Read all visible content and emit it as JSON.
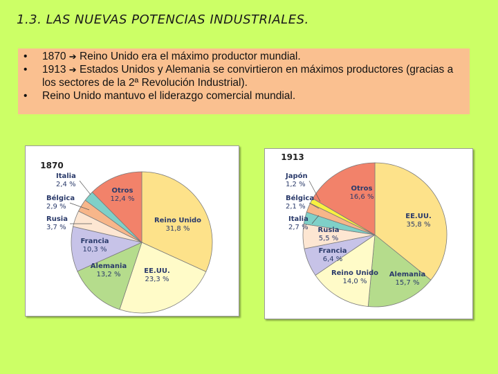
{
  "title": "1.3. LAS NUEVAS POTENCIAS INDUSTRIALES.",
  "bullets": [
    {
      "marker": "•",
      "year": "1870",
      "text": "Reino Unido era el máximo productor mundial."
    },
    {
      "marker": "•",
      "year": "1913",
      "text": "Estados Unidos y Alemania se convirtieron en máximos productores (gracias a los sectores de la 2ª Revolución Industrial)."
    },
    {
      "marker": "•",
      "year": "",
      "text": "Reino Unido mantuvo el liderazgo comercial mundial."
    }
  ],
  "chart_data": [
    {
      "type": "pie",
      "title": "1870",
      "slices": [
        {
          "label": "Reino Unido",
          "value_label": "31,8 %",
          "value": 31.8,
          "color": "#fde28a"
        },
        {
          "label": "EE.UU.",
          "value_label": "23,3 %",
          "value": 23.3,
          "color": "#fffbc8"
        },
        {
          "label": "Alemania",
          "value_label": "13,2 %",
          "value": 13.2,
          "color": "#b5dc8c"
        },
        {
          "label": "Francia",
          "value_label": "10,3 %",
          "value": 10.3,
          "color": "#c7c3e8"
        },
        {
          "label": "Rusia",
          "value_label": "3,7 %",
          "value": 3.7,
          "color": "#fde6d2"
        },
        {
          "label": "Bélgica",
          "value_label": "2,9 %",
          "value": 2.9,
          "color": "#f7b68a"
        },
        {
          "label": "Italia",
          "value_label": "2,4 %",
          "value": 2.4,
          "color": "#7fd0c8"
        },
        {
          "label": "Otros",
          "value_label": "12,4 %",
          "value": 12.4,
          "color": "#f2826a"
        }
      ]
    },
    {
      "type": "pie",
      "title": "1913",
      "slices": [
        {
          "label": "EE.UU.",
          "value_label": "35,8 %",
          "value": 35.8,
          "color": "#fde28a"
        },
        {
          "label": "Alemania",
          "value_label": "15,7 %",
          "value": 15.7,
          "color": "#b5dc8c"
        },
        {
          "label": "Reino Unido",
          "value_label": "14,0 %",
          "value": 14.0,
          "color": "#fffbc8"
        },
        {
          "label": "Francia",
          "value_label": "6,4 %",
          "value": 6.4,
          "color": "#c7c3e8"
        },
        {
          "label": "Rusia",
          "value_label": "5,5 %",
          "value": 5.5,
          "color": "#fde6d2"
        },
        {
          "label": "Italia",
          "value_label": "2,7 %",
          "value": 2.7,
          "color": "#7fd0c8"
        },
        {
          "label": "Bélgica",
          "value_label": "2,1 %",
          "value": 2.1,
          "color": "#f7b68a"
        },
        {
          "label": "Japón",
          "value_label": "1,2 %",
          "value": 1.2,
          "color": "#f8f040"
        },
        {
          "label": "Otros",
          "value_label": "16,6 %",
          "value": 16.6,
          "color": "#f2826a"
        }
      ]
    }
  ]
}
